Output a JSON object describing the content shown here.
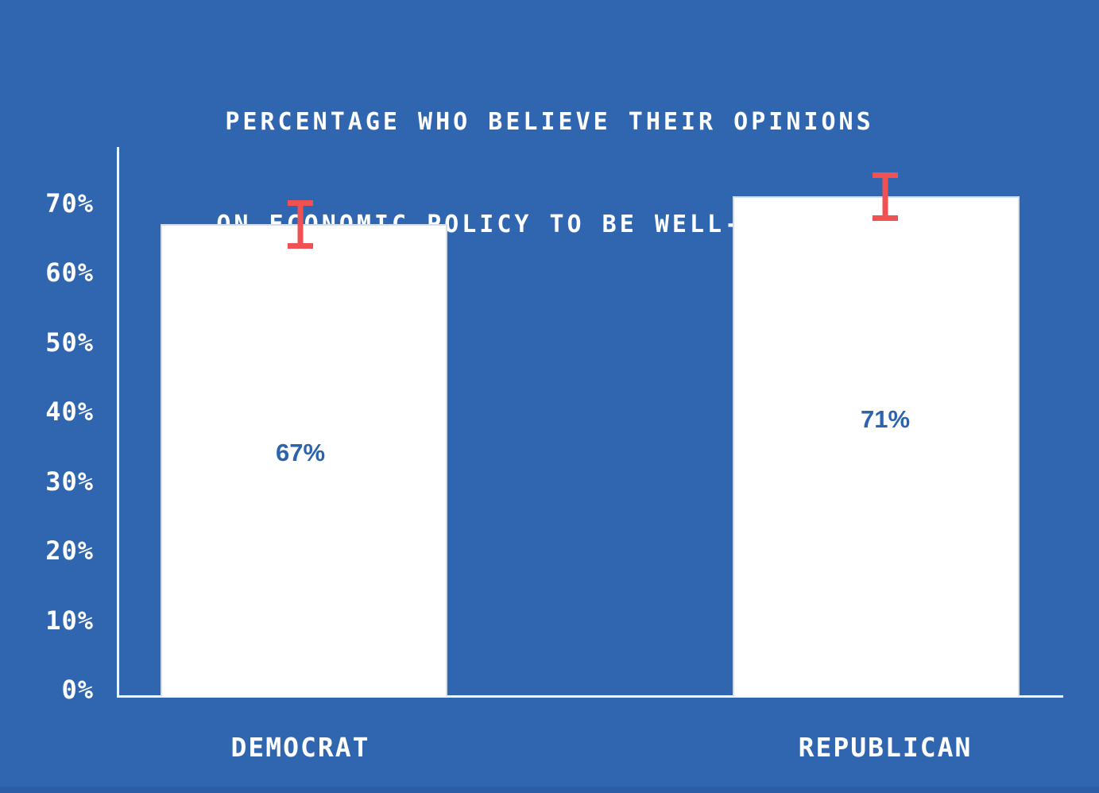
{
  "page": {
    "background_color": "#3065AF",
    "footer_strip_color": "#2B5DA6"
  },
  "title": {
    "line1": "PERCENTAGE WHO BELIEVE THEIR OPINIONS",
    "line2": "ON ECONOMIC POLICY TO BE WELL-INFORMED",
    "color": "#FFFFFF"
  },
  "chart_data": {
    "type": "bar",
    "title": "PERCENTAGE WHO BELIEVE THEIR OPINIONS ON ECONOMIC POLICY TO BE WELL-INFORMED",
    "categories": [
      "DEMOCRAT",
      "REPUBLICAN"
    ],
    "values": [
      67,
      71
    ],
    "value_labels": [
      "67%",
      "71%"
    ],
    "error_margin_pct": 3.5,
    "xlabel": "",
    "ylabel": "",
    "ylim": [
      0,
      78
    ],
    "grid": false,
    "legend": false,
    "y_ticks": [
      {
        "value": 0,
        "label": "0%"
      },
      {
        "value": 10,
        "label": "10%"
      },
      {
        "value": 20,
        "label": "20%"
      },
      {
        "value": 30,
        "label": "30%"
      },
      {
        "value": 40,
        "label": "40%"
      },
      {
        "value": 50,
        "label": "50%"
      },
      {
        "value": 60,
        "label": "60%"
      },
      {
        "value": 70,
        "label": "70%"
      }
    ],
    "bar_color": "#FFFFFF",
    "error_bar_color": "#F05253",
    "value_label_color": "#2C63AE",
    "axis_color": "#F2F5FA",
    "tick_label_color": "#FFFFFF",
    "category_label_color": "#FFFFFF"
  }
}
